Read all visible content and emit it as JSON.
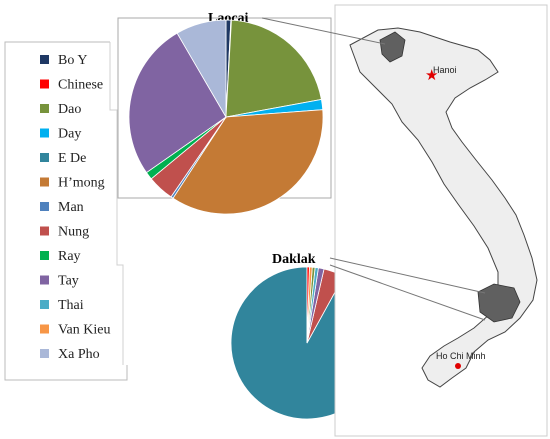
{
  "chart_data": {
    "type": "pie",
    "legend": {
      "placement": "left",
      "items": [
        {
          "name": "Bo Y",
          "color": "#1f3864"
        },
        {
          "name": "Chinese",
          "color": "#ff0000"
        },
        {
          "name": "Dao",
          "color": "#77933c"
        },
        {
          "name": "Day",
          "color": "#00b0f0"
        },
        {
          "name": "E De",
          "color": "#31859c"
        },
        {
          "name": "H’mong",
          "color": "#c47a35"
        },
        {
          "name": "Man",
          "color": "#4f81bd"
        },
        {
          "name": "Nung",
          "color": "#c0504d"
        },
        {
          "name": "Ray",
          "color": "#00b050"
        },
        {
          "name": "Tay",
          "color": "#8064a2"
        },
        {
          "name": "Thai",
          "color": "#4bacc6"
        },
        {
          "name": "Van Kieu",
          "color": "#f79646"
        },
        {
          "name": "Xa Pho",
          "color": "#aab8d8"
        }
      ]
    },
    "pies": [
      {
        "title": "Laocai",
        "slices": [
          {
            "name": "Bo Y",
            "value": 0.8
          },
          {
            "name": "Chinese",
            "value": 0.1
          },
          {
            "name": "Dao",
            "value": 21.2
          },
          {
            "name": "Day",
            "value": 1.7
          },
          {
            "name": "H’mong",
            "value": 35.4
          },
          {
            "name": "Man",
            "value": 0.4
          },
          {
            "name": "Nung",
            "value": 4.4
          },
          {
            "name": "Ray",
            "value": 1.3
          },
          {
            "name": "Tay",
            "value": 26.3
          },
          {
            "name": "Xa Pho",
            "value": 8.4
          }
        ]
      },
      {
        "title": "Daklak",
        "slices": [
          {
            "name": "E De",
            "value": 92.0
          },
          {
            "name": "Nung",
            "value": 4.4
          },
          {
            "name": "Tay",
            "value": 1.2
          },
          {
            "name": "Thai",
            "value": 0.7
          },
          {
            "name": "Dao",
            "value": 0.6
          },
          {
            "name": "Van Kieu",
            "value": 0.6
          },
          {
            "name": "Chinese",
            "value": 0.5
          }
        ]
      }
    ]
  },
  "map": {
    "cities": [
      "Hanoi",
      "Ho Chi Minh"
    ],
    "highlight_color": "#606060",
    "land_color": "#eeeeee",
    "marker_colors": {
      "Hanoi": "#e00000",
      "Ho Chi Minh": "#e00000"
    }
  }
}
